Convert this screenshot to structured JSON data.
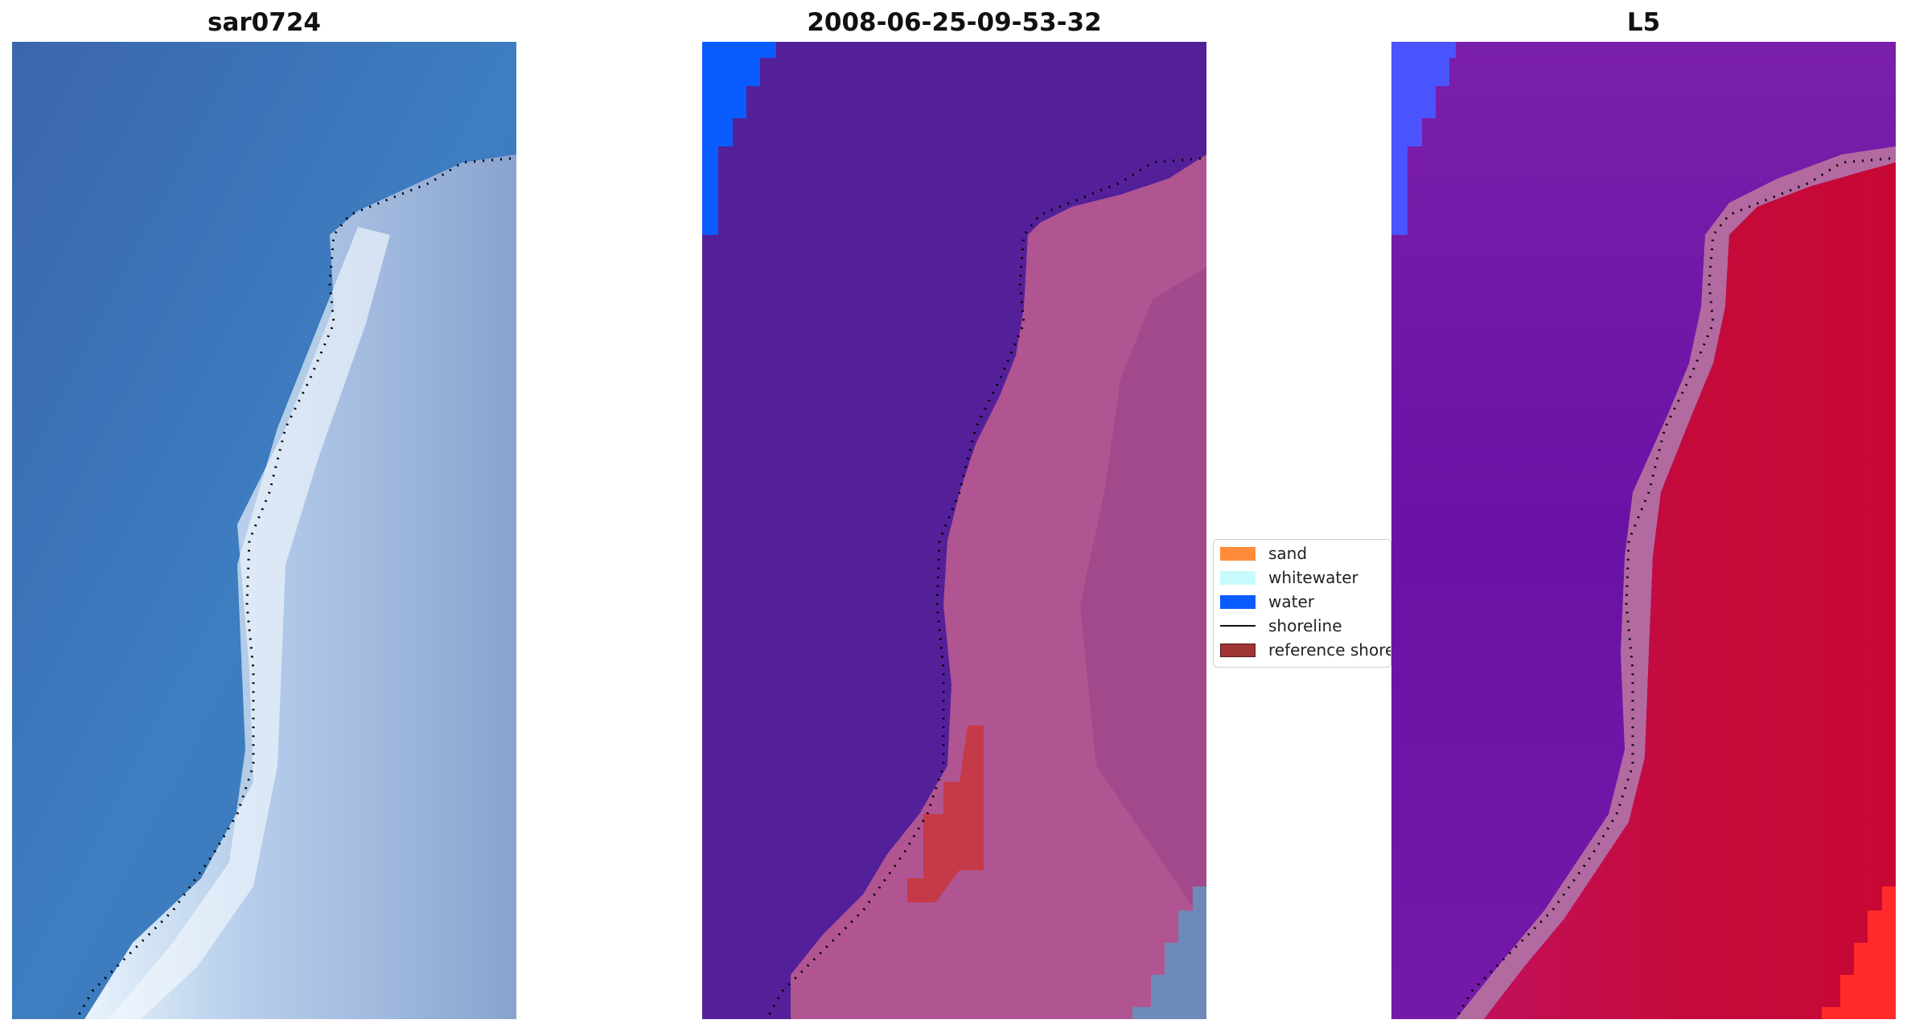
{
  "panels": [
    {
      "title": "sar0724"
    },
    {
      "title": "2008-06-25-09-53-32"
    },
    {
      "title": "L5"
    }
  ],
  "legend": {
    "items": [
      {
        "label": "sand",
        "color": "#ff8c3a"
      },
      {
        "label": "whitewater",
        "color": "#c8fbfb"
      },
      {
        "label": "water",
        "color": "#0a5cff"
      },
      {
        "label": "shoreline",
        "color": "#000000"
      },
      {
        "label": "reference shoreline",
        "color": "#a03535"
      }
    ]
  },
  "colors": {
    "sar_water": "#3a74b8",
    "classified_water": "#54209a",
    "classified_land": "#b05592",
    "l5_water": "#7418a8",
    "l5_land": "#c40a3a"
  }
}
